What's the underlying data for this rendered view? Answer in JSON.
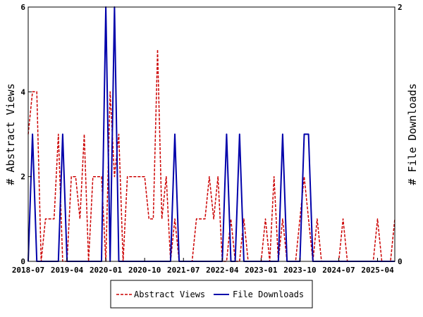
{
  "chart_data": {
    "type": "line",
    "title": "",
    "xlabel": "",
    "ylabel_left": "# Abstract Views",
    "ylabel_right": "# File Downloads",
    "x_ticks": [
      "2018-07",
      "2019-04",
      "2020-01",
      "2020-10",
      "2021-07",
      "2022-04",
      "2023-01",
      "2023-10",
      "2024-07",
      "2025-04"
    ],
    "x_range": [
      "2018-07",
      "2025-08"
    ],
    "y_left_range": [
      0,
      6
    ],
    "y_left_ticks": [
      0,
      2,
      4,
      6
    ],
    "y_right_range": [
      0,
      2
    ],
    "y_right_ticks": [
      0,
      2
    ],
    "grid": false,
    "legend_position": "bottom",
    "series": [
      {
        "name": "Abstract Views",
        "axis": "left",
        "color": "#cc0000",
        "style": "dashed",
        "points": [
          [
            "2018-07",
            3
          ],
          [
            "2018-08",
            4
          ],
          [
            "2018-09",
            4
          ],
          [
            "2018-10",
            0
          ],
          [
            "2018-11",
            1
          ],
          [
            "2018-12",
            1
          ],
          [
            "2019-01",
            1
          ],
          [
            "2019-02",
            3
          ],
          [
            "2019-03",
            0
          ],
          [
            "2019-04",
            0
          ],
          [
            "2019-05",
            2
          ],
          [
            "2019-06",
            2
          ],
          [
            "2019-07",
            1
          ],
          [
            "2019-08",
            3
          ],
          [
            "2019-09",
            0
          ],
          [
            "2019-10",
            2
          ],
          [
            "2019-11",
            2
          ],
          [
            "2019-12",
            2
          ],
          [
            "2020-01",
            0
          ],
          [
            "2020-02",
            4
          ],
          [
            "2020-03",
            2
          ],
          [
            "2020-04",
            3
          ],
          [
            "2020-05",
            0
          ],
          [
            "2020-06",
            2
          ],
          [
            "2020-07",
            2
          ],
          [
            "2020-08",
            2
          ],
          [
            "2020-09",
            2
          ],
          [
            "2020-10",
            2
          ],
          [
            "2020-11",
            1
          ],
          [
            "2020-12",
            1
          ],
          [
            "2021-01",
            5
          ],
          [
            "2021-02",
            1
          ],
          [
            "2021-03",
            2
          ],
          [
            "2021-04",
            0
          ],
          [
            "2021-05",
            1
          ],
          [
            "2021-06",
            0
          ],
          [
            "2021-07",
            0
          ],
          [
            "2021-08",
            0
          ],
          [
            "2021-09",
            0
          ],
          [
            "2021-10",
            1
          ],
          [
            "2021-11",
            1
          ],
          [
            "2021-12",
            1
          ],
          [
            "2022-01",
            2
          ],
          [
            "2022-02",
            1
          ],
          [
            "2022-03",
            2
          ],
          [
            "2022-04",
            0
          ],
          [
            "2022-05",
            0
          ],
          [
            "2022-06",
            1
          ],
          [
            "2022-07",
            0
          ],
          [
            "2022-08",
            0
          ],
          [
            "2022-09",
            1
          ],
          [
            "2022-10",
            0
          ],
          [
            "2022-11",
            0
          ],
          [
            "2022-12",
            0
          ],
          [
            "2023-01",
            0
          ],
          [
            "2023-02",
            1
          ],
          [
            "2023-03",
            0
          ],
          [
            "2023-04",
            2
          ],
          [
            "2023-05",
            0
          ],
          [
            "2023-06",
            1
          ],
          [
            "2023-07",
            0
          ],
          [
            "2023-08",
            0
          ],
          [
            "2023-09",
            0
          ],
          [
            "2023-10",
            1
          ],
          [
            "2023-11",
            2
          ],
          [
            "2023-12",
            1
          ],
          [
            "2024-01",
            0
          ],
          [
            "2024-02",
            1
          ],
          [
            "2024-03",
            0
          ],
          [
            "2024-04",
            0
          ],
          [
            "2024-05",
            0
          ],
          [
            "2024-06",
            0
          ],
          [
            "2024-07",
            0
          ],
          [
            "2024-08",
            1
          ],
          [
            "2024-09",
            0
          ],
          [
            "2024-10",
            0
          ],
          [
            "2024-11",
            0
          ],
          [
            "2024-12",
            0
          ],
          [
            "2025-01",
            0
          ],
          [
            "2025-02",
            0
          ],
          [
            "2025-03",
            0
          ],
          [
            "2025-04",
            1
          ],
          [
            "2025-05",
            0
          ],
          [
            "2025-06",
            0
          ],
          [
            "2025-07",
            0
          ],
          [
            "2025-08",
            1
          ]
        ]
      },
      {
        "name": "File Downloads",
        "axis": "right",
        "color": "#0000aa",
        "style": "solid",
        "points": [
          [
            "2018-07",
            0
          ],
          [
            "2018-08",
            1
          ],
          [
            "2018-09",
            0
          ],
          [
            "2018-10",
            0
          ],
          [
            "2018-11",
            0
          ],
          [
            "2018-12",
            0
          ],
          [
            "2019-01",
            0
          ],
          [
            "2019-02",
            0
          ],
          [
            "2019-03",
            1
          ],
          [
            "2019-04",
            0
          ],
          [
            "2019-05",
            0
          ],
          [
            "2019-06",
            0
          ],
          [
            "2019-07",
            0
          ],
          [
            "2019-08",
            0
          ],
          [
            "2019-09",
            0
          ],
          [
            "2019-10",
            0
          ],
          [
            "2019-11",
            0
          ],
          [
            "2019-12",
            0
          ],
          [
            "2020-01",
            2
          ],
          [
            "2020-02",
            0
          ],
          [
            "2020-03",
            2
          ],
          [
            "2020-04",
            0
          ],
          [
            "2020-05",
            0
          ],
          [
            "2020-06",
            0
          ],
          [
            "2020-07",
            0
          ],
          [
            "2020-08",
            0
          ],
          [
            "2020-09",
            0
          ],
          [
            "2020-10",
            0
          ],
          [
            "2020-11",
            0
          ],
          [
            "2020-12",
            0
          ],
          [
            "2021-01",
            0
          ],
          [
            "2021-02",
            0
          ],
          [
            "2021-03",
            0
          ],
          [
            "2021-04",
            0
          ],
          [
            "2021-05",
            1
          ],
          [
            "2021-06",
            0
          ],
          [
            "2021-07",
            0
          ],
          [
            "2021-08",
            0
          ],
          [
            "2021-09",
            0
          ],
          [
            "2021-10",
            0
          ],
          [
            "2021-11",
            0
          ],
          [
            "2021-12",
            0
          ],
          [
            "2022-01",
            0
          ],
          [
            "2022-02",
            0
          ],
          [
            "2022-03",
            0
          ],
          [
            "2022-04",
            0
          ],
          [
            "2022-05",
            1
          ],
          [
            "2022-06",
            0
          ],
          [
            "2022-07",
            0
          ],
          [
            "2022-08",
            1
          ],
          [
            "2022-09",
            0
          ],
          [
            "2022-10",
            0
          ],
          [
            "2022-11",
            0
          ],
          [
            "2022-12",
            0
          ],
          [
            "2023-01",
            0
          ],
          [
            "2023-02",
            0
          ],
          [
            "2023-03",
            0
          ],
          [
            "2023-04",
            0
          ],
          [
            "2023-05",
            0
          ],
          [
            "2023-06",
            1
          ],
          [
            "2023-07",
            0
          ],
          [
            "2023-08",
            0
          ],
          [
            "2023-09",
            0
          ],
          [
            "2023-10",
            0
          ],
          [
            "2023-11",
            1
          ],
          [
            "2023-12",
            1
          ],
          [
            "2024-01",
            0
          ],
          [
            "2024-02",
            0
          ],
          [
            "2024-03",
            0
          ],
          [
            "2024-04",
            0
          ],
          [
            "2024-05",
            0
          ],
          [
            "2024-06",
            0
          ],
          [
            "2024-07",
            0
          ],
          [
            "2024-08",
            0
          ],
          [
            "2024-09",
            0
          ],
          [
            "2024-10",
            0
          ],
          [
            "2024-11",
            0
          ],
          [
            "2024-12",
            0
          ],
          [
            "2025-01",
            0
          ],
          [
            "2025-02",
            0
          ],
          [
            "2025-03",
            0
          ],
          [
            "2025-04",
            0
          ],
          [
            "2025-05",
            0
          ],
          [
            "2025-06",
            0
          ],
          [
            "2025-07",
            0
          ],
          [
            "2025-08",
            0
          ]
        ]
      }
    ]
  }
}
